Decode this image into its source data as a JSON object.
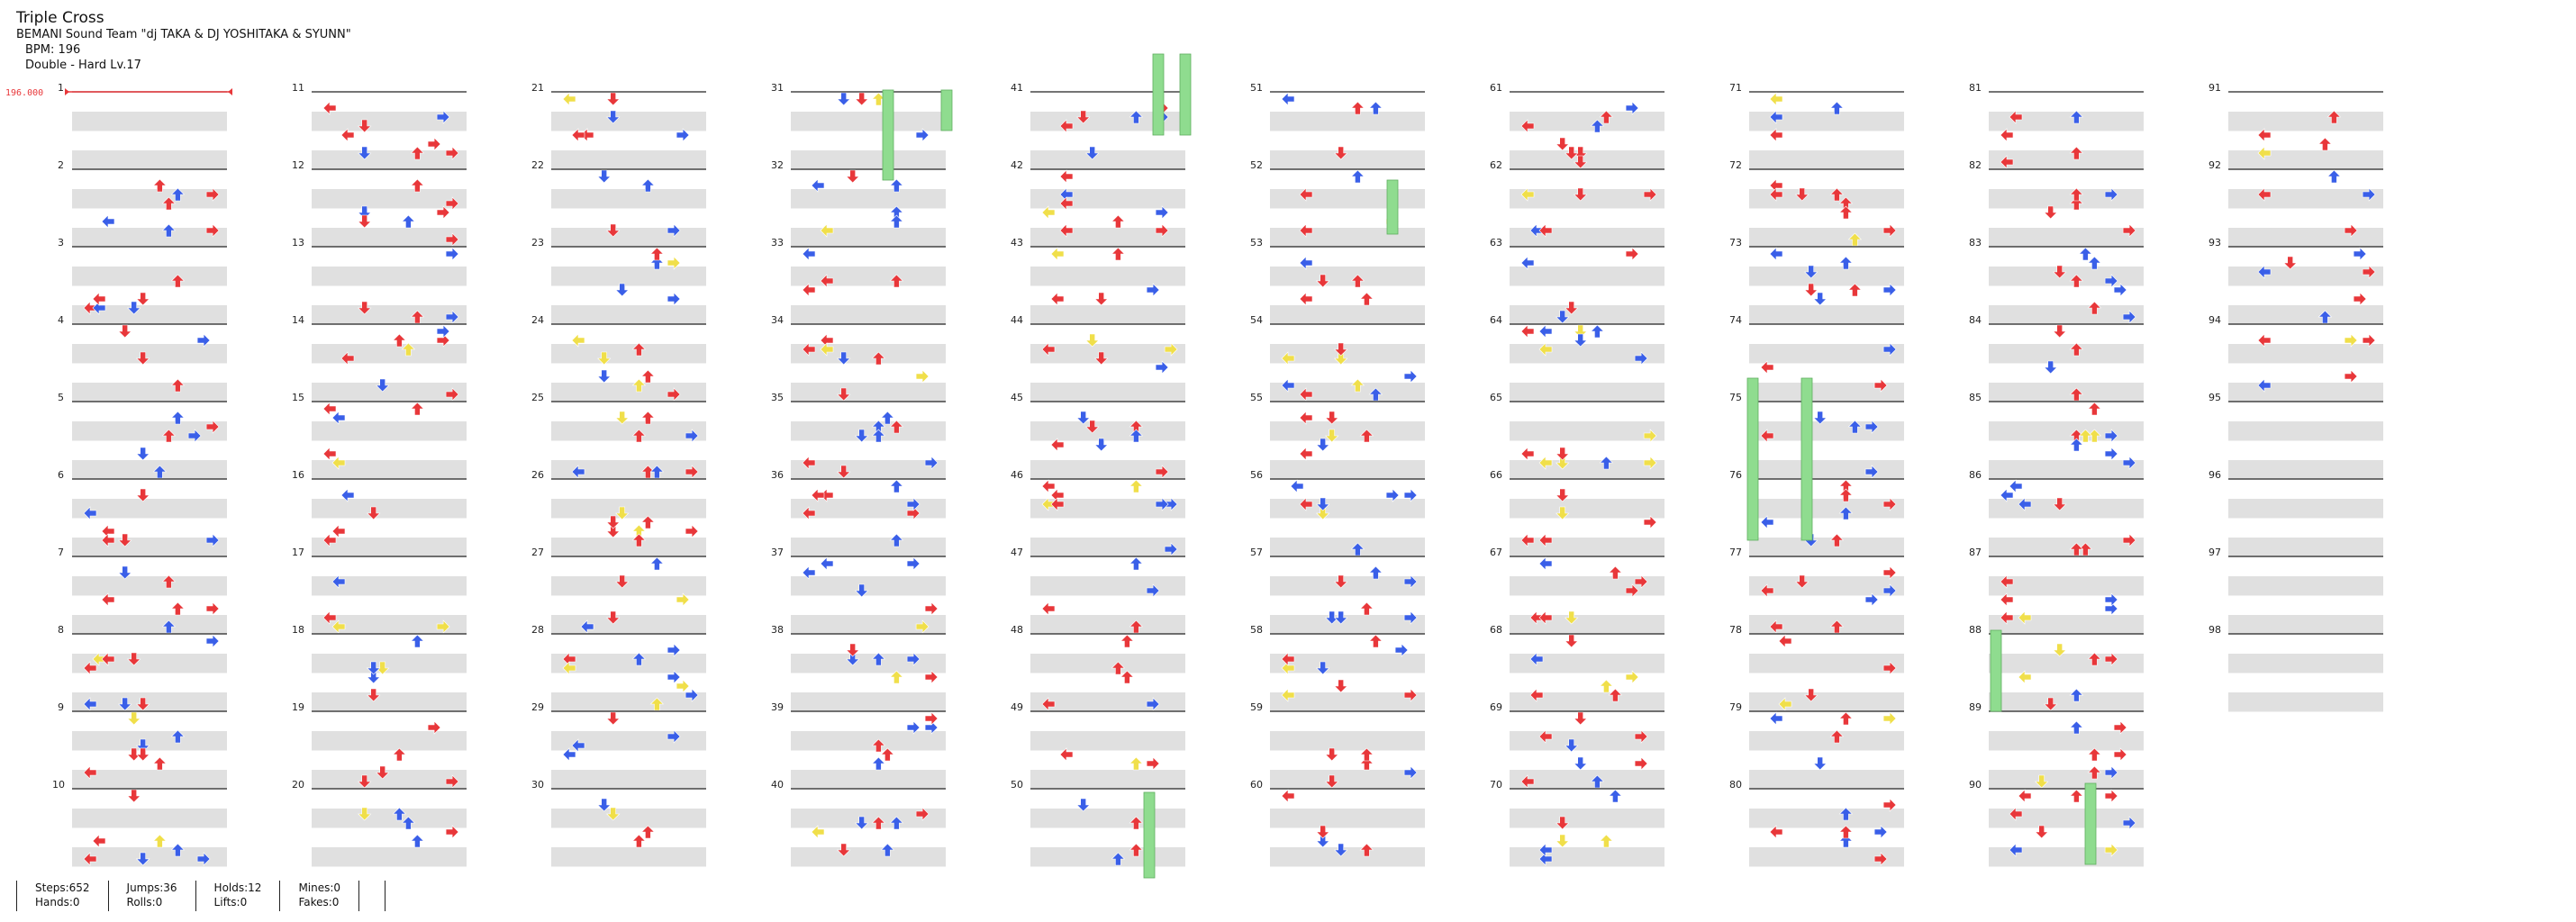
{
  "song": {
    "title": "Triple Cross",
    "artist": "BEMANI Sound Team \"dj TAKA & DJ YOSHITAKA & SYUNN\"",
    "bpm": "BPM: 196",
    "chart": "Double - Hard  Lv.17"
  },
  "bpm_marker": {
    "label": "196.000",
    "color": "#e8373a"
  },
  "measure_labels": [
    "1",
    "2",
    "3",
    "4",
    "5",
    "6",
    "7",
    "8",
    "9",
    "10",
    "11",
    "12",
    "13",
    "14",
    "15",
    "16",
    "17",
    "18",
    "19",
    "20",
    "21",
    "22",
    "23",
    "24",
    "25",
    "26",
    "27",
    "28",
    "29",
    "30",
    "31",
    "32",
    "33",
    "34",
    "35",
    "36",
    "37",
    "38",
    "39",
    "40",
    "41",
    "42",
    "43",
    "44",
    "45",
    "46",
    "47",
    "48",
    "49",
    "50",
    "51",
    "52",
    "53",
    "54",
    "55",
    "56",
    "57",
    "58",
    "59",
    "60",
    "61",
    "62",
    "63",
    "64",
    "65",
    "66",
    "67",
    "68",
    "69",
    "70",
    "71",
    "72",
    "73",
    "74",
    "75",
    "76",
    "77",
    "78",
    "79",
    "80",
    "81",
    "82",
    "83",
    "84",
    "85",
    "86",
    "87",
    "88",
    "89",
    "90",
    "91",
    "92",
    "93",
    "94",
    "95",
    "96",
    "97",
    "98"
  ],
  "stats": {
    "steps": "Steps:652",
    "hands": "Hands:0",
    "jumps": "Jumps:36",
    "rolls": "Rolls:0",
    "holds": "Holds:12",
    "lifts": "Lifts:0",
    "mines": "Mines:0",
    "fakes": "Fakes:0"
  },
  "colors": {
    "quarter_note": "#e8373a",
    "eighth_note": "#3a5fe8",
    "sixteenth_note": "#f0df4a",
    "hold": "#8fdc8f",
    "measure_line": "#222222",
    "stripe": "#e0e0e0"
  },
  "note_icons": [
    "arrow-left-icon",
    "arrow-down-icon",
    "arrow-up-icon",
    "arrow-right-icon"
  ]
}
